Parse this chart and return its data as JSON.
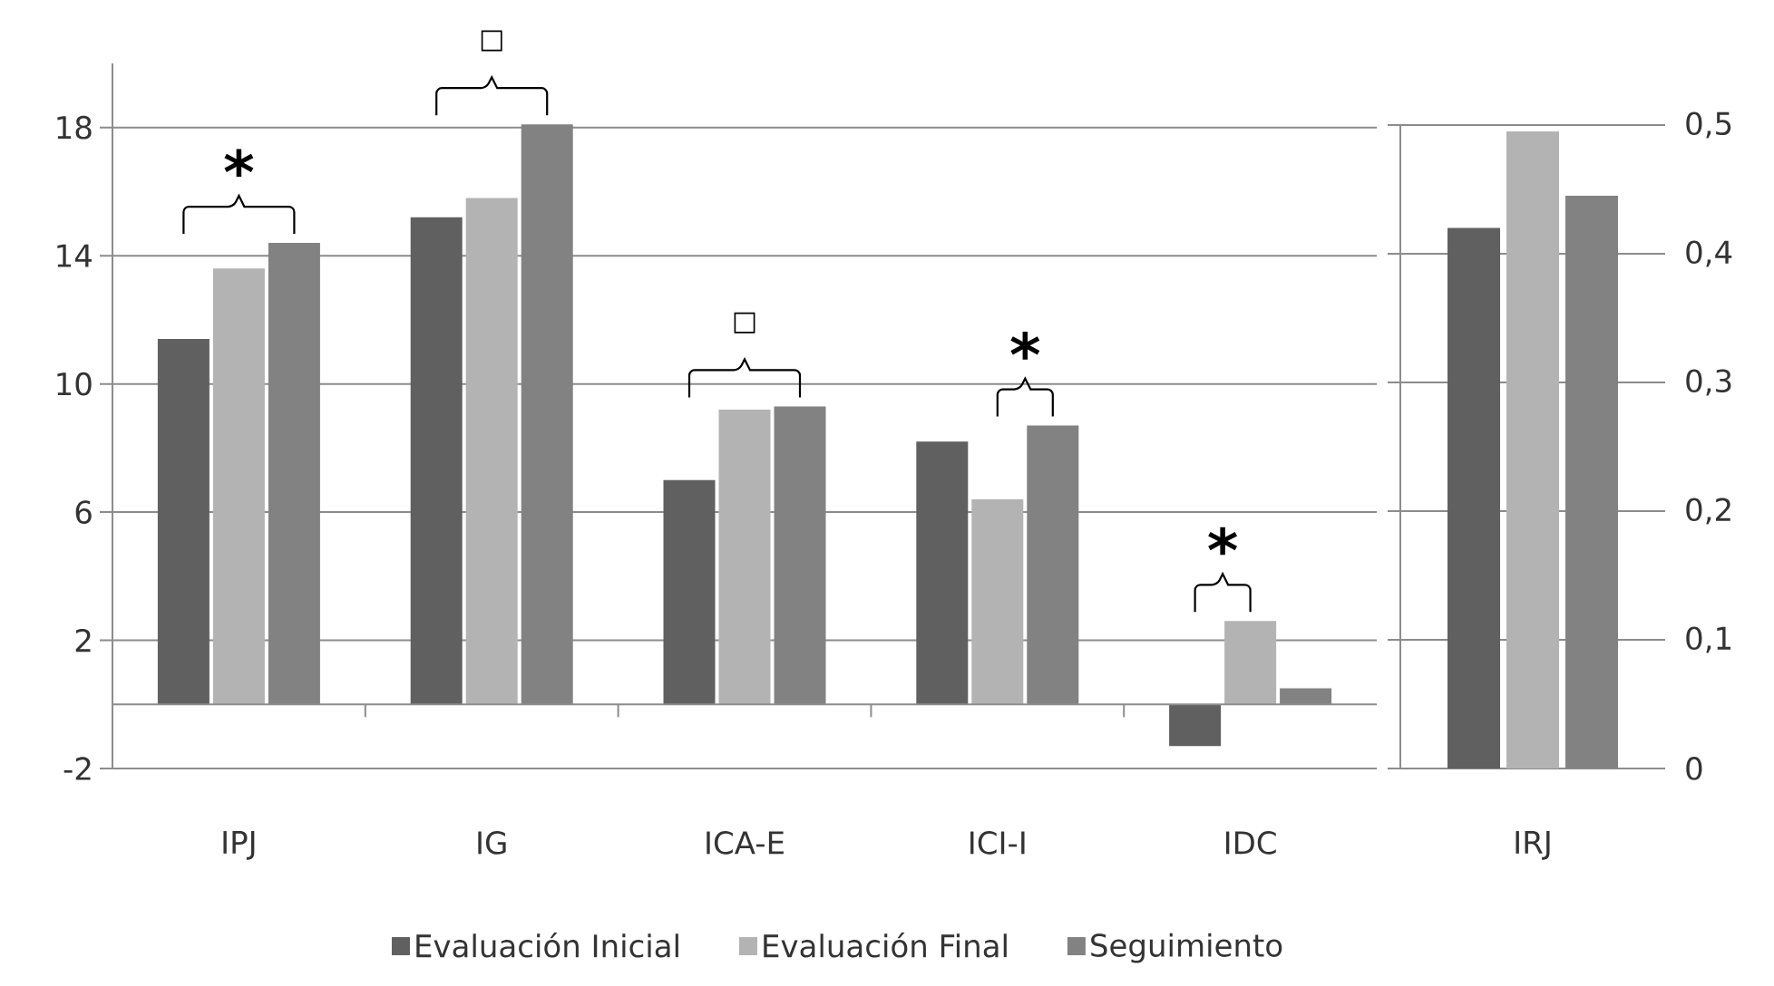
{
  "chart_data": [
    {
      "type": "bar",
      "categories": [
        "IPJ",
        "IG",
        "ICA-E",
        "ICI-I",
        "IDC"
      ],
      "series": [
        {
          "name": "Evaluación Inicial",
          "color": "#606060",
          "values": [
            11.4,
            15.2,
            7.0,
            8.2,
            -1.3
          ]
        },
        {
          "name": "Evaluación Final",
          "color": "#b3b3b3",
          "values": [
            13.6,
            15.8,
            9.2,
            6.4,
            2.6
          ]
        },
        {
          "name": "Seguimiento",
          "color": "#828282",
          "values": [
            14.4,
            18.1,
            9.3,
            8.7,
            0.5
          ]
        }
      ],
      "ylim": [
        -2,
        20
      ],
      "yticks": [
        -2,
        2,
        6,
        10,
        14,
        18
      ],
      "grid": "y",
      "legend": "bottom",
      "annotations": [
        "*",
        "□",
        "□",
        "*",
        "*"
      ]
    },
    {
      "type": "bar",
      "categories": [
        "IRJ"
      ],
      "series": [
        {
          "color": "#606060",
          "values": [
            0.42
          ],
          "axis": "y2"
        },
        {
          "color": "#b3b3b3",
          "values": [
            0.495
          ],
          "axis": "y2"
        },
        {
          "color": "#828282",
          "values": [
            0.445
          ],
          "axis": "y2"
        }
      ],
      "y2lim": [
        0,
        0.5
      ],
      "y2ticks": [
        0,
        {
          "value": 0.1,
          "label": "0,1"
        },
        {
          "value": 0.2,
          "label": "0,2"
        },
        {
          "value": 0.3,
          "label": "0,3"
        },
        {
          "value": 0.4,
          "label": "0,4"
        },
        {
          "value": 0.5,
          "label": "0,5"
        }
      ],
      "grid": true
    }
  ]
}
